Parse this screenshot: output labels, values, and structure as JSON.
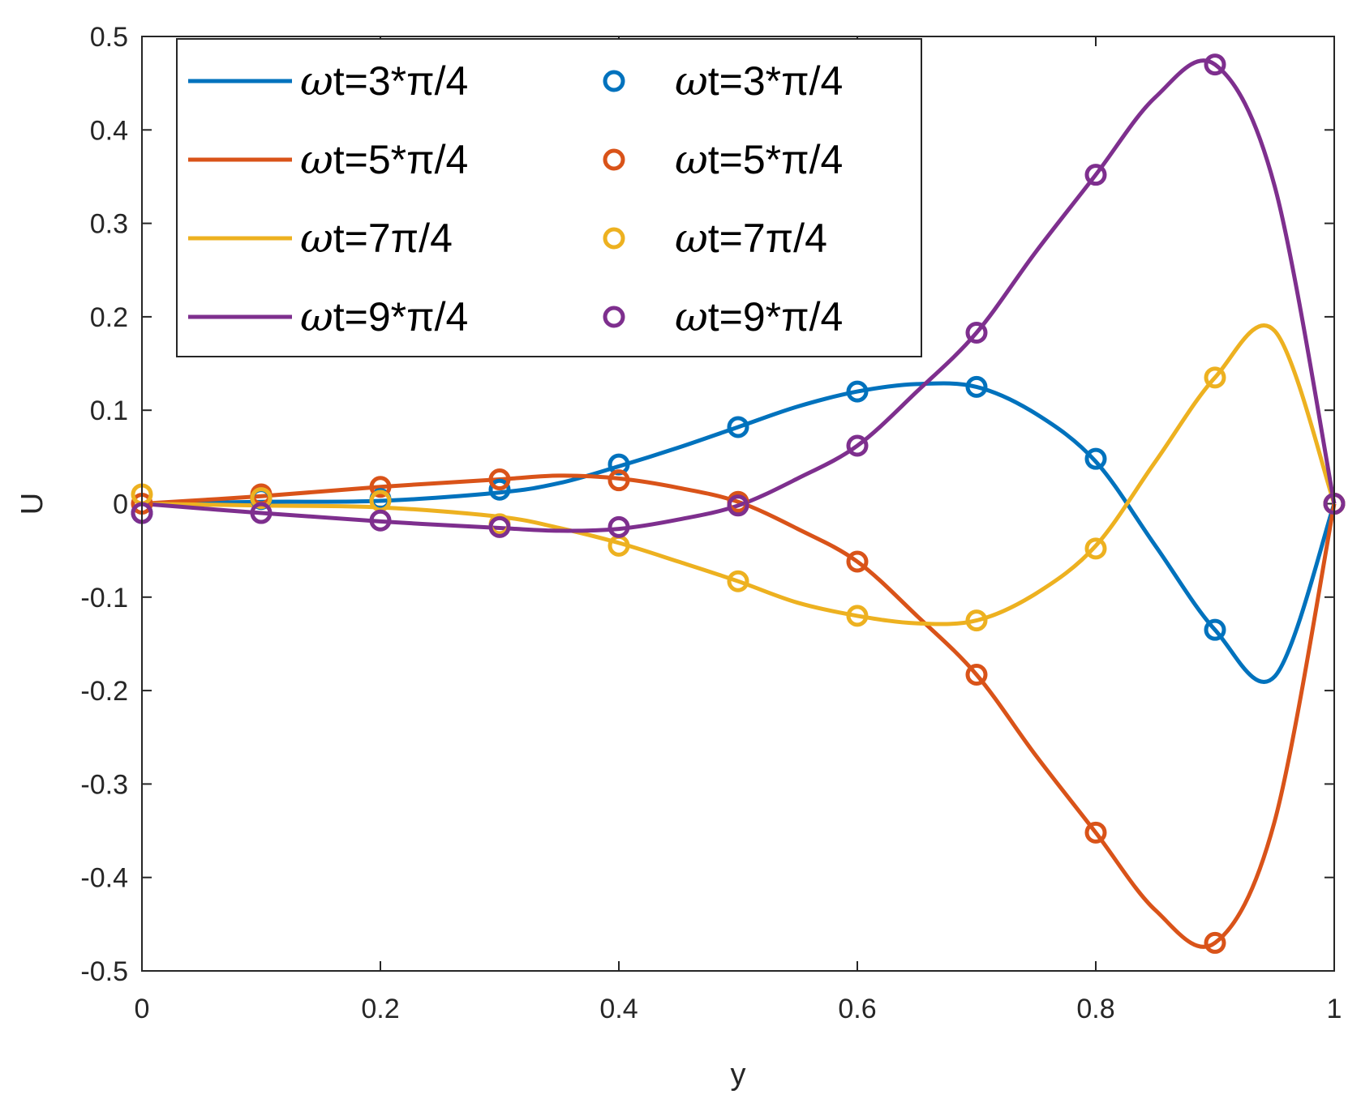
{
  "chart_data": {
    "type": "line",
    "title": "",
    "xlabel": "y",
    "ylabel": "U",
    "xlim": [
      0,
      1
    ],
    "ylim": [
      -0.5,
      0.5
    ],
    "grid": false,
    "legend_location": "top-left",
    "xticks": [
      0,
      0.2,
      0.4,
      0.6,
      0.8,
      1
    ],
    "xtick_labels": [
      "0",
      "0.2",
      "0.4",
      "0.6",
      "0.8",
      "1"
    ],
    "yticks": [
      0.5,
      0.4,
      0.3,
      0.2,
      0.1,
      0,
      -0.1,
      -0.2,
      -0.3,
      -0.4,
      -0.5
    ],
    "ytick_labels": [
      "0.5",
      "0.4",
      "0.3",
      "0.2",
      "0.1",
      "0",
      "-0.1",
      "-0.2",
      "-0.3",
      "-0.4",
      "-0.5"
    ],
    "series": [
      {
        "name": "line_3pi4",
        "legend_prefix": "ω",
        "legend_label": "t=3*π/4",
        "color": "#0072BD",
        "style": "line",
        "x": [
          0,
          0.1,
          0.2,
          0.3,
          0.35,
          0.4,
          0.45,
          0.5,
          0.55,
          0.6,
          0.65,
          0.7,
          0.75,
          0.8,
          0.85,
          0.9,
          0.95,
          1.0
        ],
        "values": [
          0,
          0.002,
          0.003,
          0.012,
          0.022,
          0.04,
          0.06,
          0.082,
          0.104,
          0.12,
          0.128,
          0.125,
          0.096,
          0.045,
          -0.045,
          -0.135,
          -0.185,
          0
        ]
      },
      {
        "name": "line_5pi4",
        "legend_prefix": "ω",
        "legend_label": "t=5*π/4",
        "color": "#D95319",
        "style": "line",
        "x": [
          0,
          0.1,
          0.2,
          0.3,
          0.35,
          0.4,
          0.45,
          0.5,
          0.55,
          0.6,
          0.65,
          0.7,
          0.75,
          0.8,
          0.85,
          0.9,
          0.95,
          1.0
        ],
        "values": [
          0,
          0.008,
          0.018,
          0.026,
          0.03,
          0.027,
          0.017,
          0.002,
          -0.027,
          -0.062,
          -0.12,
          -0.183,
          -0.27,
          -0.352,
          -0.435,
          -0.47,
          -0.34,
          0
        ]
      },
      {
        "name": "line_7pi4",
        "legend_prefix": "ω",
        "legend_label": "t=7π/4",
        "color": "#EDB120",
        "style": "line",
        "x": [
          0,
          0.1,
          0.2,
          0.3,
          0.35,
          0.4,
          0.45,
          0.5,
          0.55,
          0.6,
          0.65,
          0.7,
          0.75,
          0.8,
          0.85,
          0.9,
          0.95,
          1.0
        ],
        "values": [
          0,
          -0.002,
          -0.004,
          -0.014,
          -0.026,
          -0.042,
          -0.062,
          -0.083,
          -0.106,
          -0.12,
          -0.128,
          -0.125,
          -0.096,
          -0.045,
          0.045,
          0.135,
          0.185,
          0
        ]
      },
      {
        "name": "line_9pi4",
        "legend_prefix": "ω",
        "legend_label": "t=9*π/4",
        "color": "#7E2F8E",
        "style": "line",
        "x": [
          0,
          0.1,
          0.2,
          0.3,
          0.35,
          0.4,
          0.45,
          0.5,
          0.55,
          0.6,
          0.65,
          0.7,
          0.75,
          0.8,
          0.85,
          0.9,
          0.95,
          1.0
        ],
        "values": [
          0,
          -0.01,
          -0.019,
          -0.026,
          -0.029,
          -0.027,
          -0.017,
          -0.002,
          0.027,
          0.062,
          0.12,
          0.183,
          0.27,
          0.352,
          0.435,
          0.47,
          0.34,
          0
        ]
      },
      {
        "name": "markers_3pi4",
        "legend_prefix": "ω",
        "legend_label": "t=3*π/4",
        "color": "#0072BD",
        "style": "marker",
        "x": [
          0,
          0.1,
          0.2,
          0.3,
          0.4,
          0.5,
          0.6,
          0.7,
          0.8,
          0.9,
          1.0
        ],
        "values": [
          -0.01,
          0.005,
          0.005,
          0.015,
          0.042,
          0.082,
          0.12,
          0.125,
          0.048,
          -0.135,
          0
        ]
      },
      {
        "name": "markers_5pi4",
        "legend_prefix": "ω",
        "legend_label": "t=5*π/4",
        "color": "#D95319",
        "style": "marker",
        "x": [
          0,
          0.1,
          0.2,
          0.3,
          0.4,
          0.5,
          0.6,
          0.7,
          0.8,
          0.9,
          1.0
        ],
        "values": [
          0,
          0.01,
          0.018,
          0.026,
          0.025,
          0.002,
          -0.062,
          -0.183,
          -0.352,
          -0.47,
          0
        ]
      },
      {
        "name": "markers_7pi4",
        "legend_prefix": "ω",
        "legend_label": "t=7π/4",
        "color": "#EDB120",
        "style": "marker",
        "x": [
          0,
          0.1,
          0.2,
          0.3,
          0.4,
          0.5,
          0.6,
          0.7,
          0.8,
          0.9,
          1.0
        ],
        "values": [
          0.01,
          0.006,
          0.003,
          -0.022,
          -0.045,
          -0.083,
          -0.12,
          -0.125,
          -0.048,
          0.135,
          0
        ]
      },
      {
        "name": "markers_9pi4",
        "legend_prefix": "ω",
        "legend_label": "t=9*π/4",
        "color": "#7E2F8E",
        "style": "marker",
        "x": [
          0,
          0.1,
          0.2,
          0.3,
          0.4,
          0.5,
          0.6,
          0.7,
          0.8,
          0.9,
          1.0
        ],
        "values": [
          -0.01,
          -0.01,
          -0.018,
          -0.025,
          -0.025,
          -0.002,
          0.062,
          0.183,
          0.352,
          0.47,
          0
        ]
      }
    ]
  }
}
